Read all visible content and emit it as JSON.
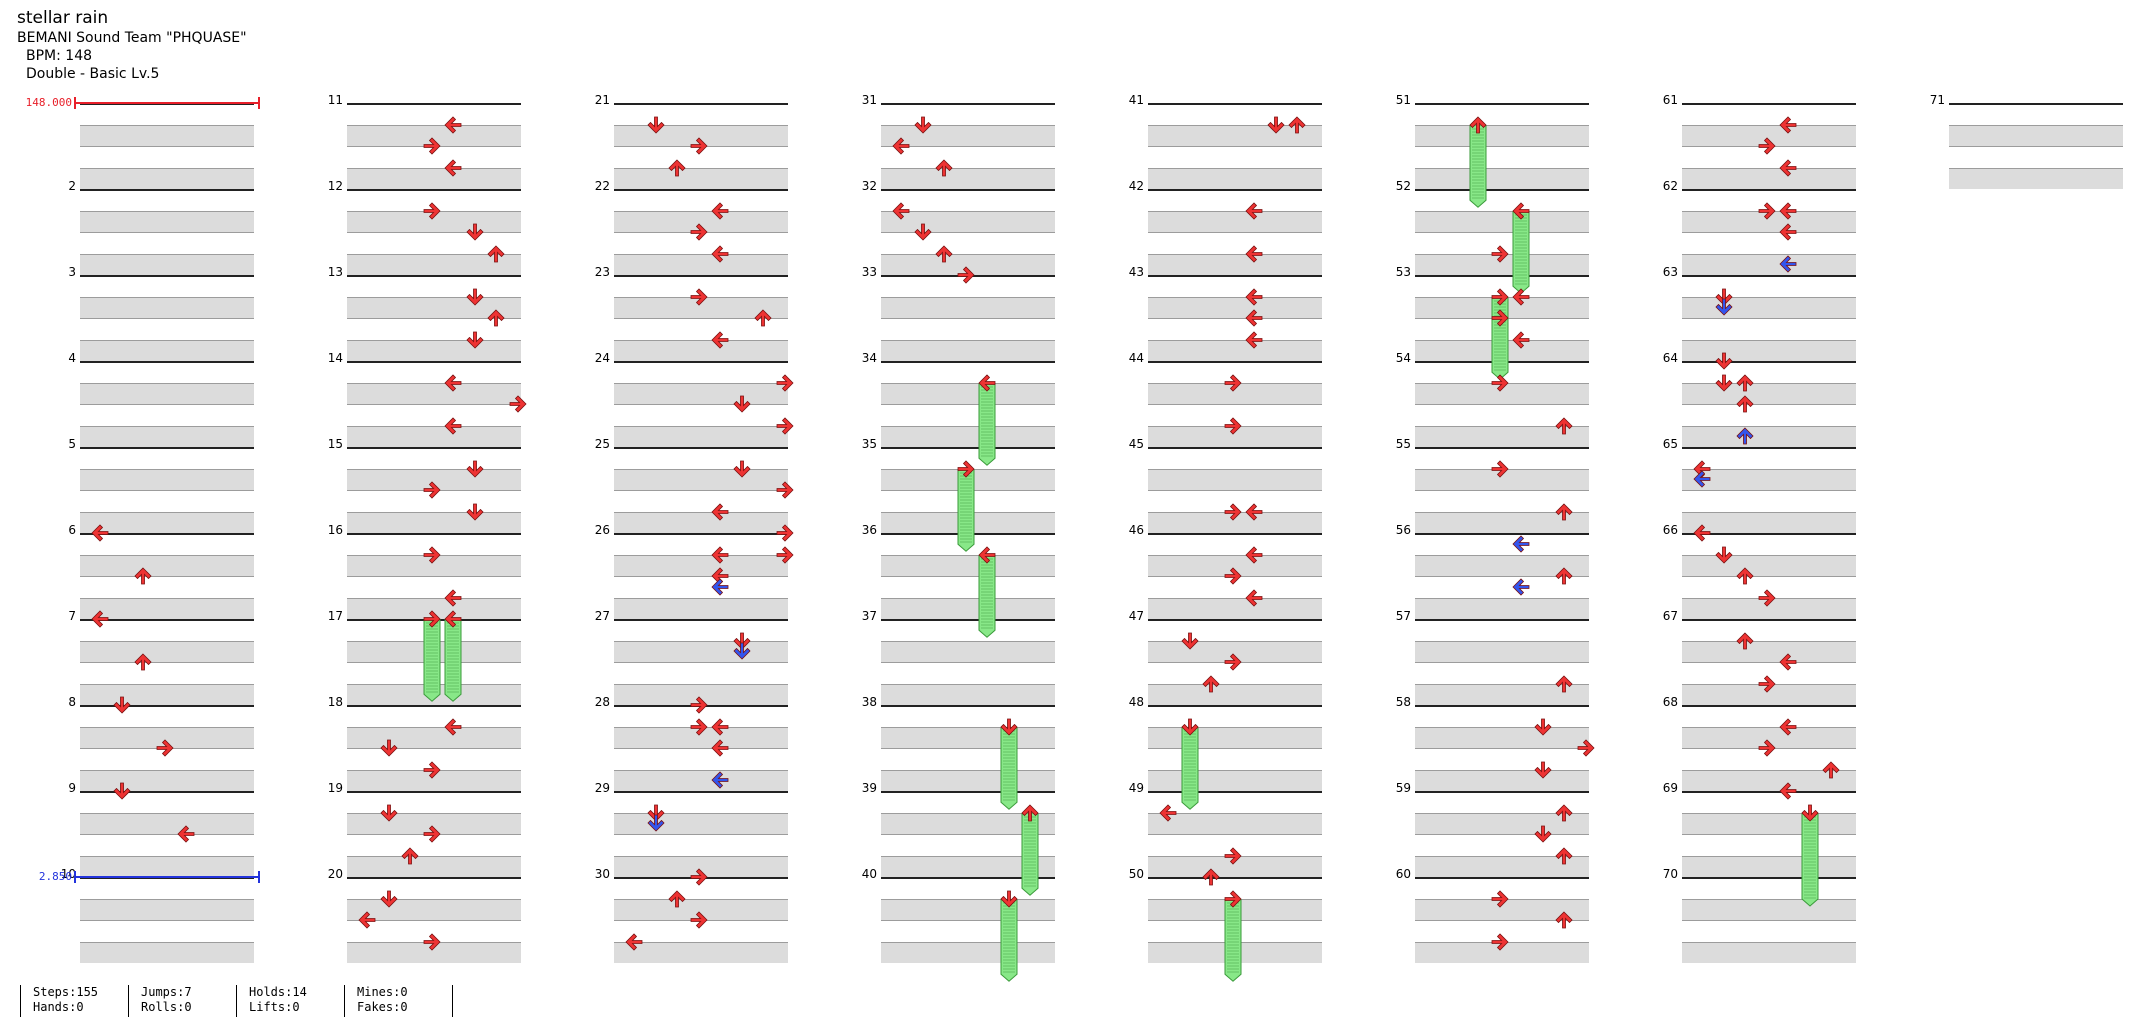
{
  "song": {
    "title": "stellar rain",
    "artist": "BEMANI Sound Team \"PHQUASE\"",
    "bpm": "BPM: 148",
    "difficulty": "Double - Basic Lv.5"
  },
  "measure_labels": [
    "",
    "2",
    "3",
    "4",
    "5",
    "6",
    "7",
    "8",
    "9",
    "10",
    "11",
    "12",
    "13",
    "14",
    "15",
    "16",
    "17",
    "18",
    "19",
    "20",
    "21",
    "22",
    "23",
    "24",
    "25",
    "26",
    "27",
    "28",
    "29",
    "30",
    "31",
    "32",
    "33",
    "34",
    "35",
    "36",
    "37",
    "38",
    "39",
    "40",
    "41",
    "42",
    "43",
    "44",
    "45",
    "46",
    "47",
    "48",
    "49",
    "50",
    "51",
    "52",
    "53",
    "54",
    "55",
    "56",
    "57",
    "58",
    "59",
    "60",
    "61",
    "62",
    "63",
    "64",
    "65",
    "66",
    "67",
    "68",
    "69",
    "70",
    "71"
  ],
  "bpm_changes": [
    {
      "label": "148.000",
      "measure": 1,
      "beat": 0,
      "color": "#e8202a"
    },
    {
      "label": "2.850",
      "measure": 10,
      "beat": 0,
      "color": "#2233dd"
    }
  ],
  "colors": {
    "quarter": "#ee3333",
    "eighth": "#3355ee",
    "hold": "#88e888",
    "hold_edge": "#3a9a3a"
  },
  "notes_note": "beat = position within measure in quarter notes (0-3.5); lane 0-7 = L D U R L D U R",
  "notes": [
    {
      "m": 6,
      "b": 0,
      "lane": 0
    },
    {
      "m": 6,
      "b": 2,
      "lane": 2
    },
    {
      "m": 7,
      "b": 0,
      "lane": 0
    },
    {
      "m": 7,
      "b": 2,
      "lane": 2
    },
    {
      "m": 8,
      "b": 0,
      "lane": 1
    },
    {
      "m": 8,
      "b": 2,
      "lane": 3
    },
    {
      "m": 9,
      "b": 0,
      "lane": 1
    },
    {
      "m": 9,
      "b": 2,
      "lane": 4
    },
    {
      "m": 11,
      "b": 1,
      "lane": 4
    },
    {
      "m": 11,
      "b": 2,
      "lane": 3
    },
    {
      "m": 11,
      "b": 3,
      "lane": 4
    },
    {
      "m": 12,
      "b": 1,
      "lane": 3
    },
    {
      "m": 12,
      "b": 2,
      "lane": 5
    },
    {
      "m": 12,
      "b": 3,
      "lane": 6
    },
    {
      "m": 13,
      "b": 1,
      "lane": 5
    },
    {
      "m": 13,
      "b": 2,
      "lane": 6
    },
    {
      "m": 13,
      "b": 3,
      "lane": 5
    },
    {
      "m": 14,
      "b": 1,
      "lane": 4
    },
    {
      "m": 14,
      "b": 2,
      "lane": 7
    },
    {
      "m": 14,
      "b": 3,
      "lane": 4
    },
    {
      "m": 15,
      "b": 1,
      "lane": 5
    },
    {
      "m": 15,
      "b": 2,
      "lane": 3
    },
    {
      "m": 15,
      "b": 3,
      "lane": 5
    },
    {
      "m": 16,
      "b": 1,
      "lane": 3
    },
    {
      "m": 16,
      "b": 3,
      "lane": 4
    },
    {
      "m": 18,
      "b": 1,
      "lane": 4
    },
    {
      "m": 18,
      "b": 2,
      "lane": 1
    },
    {
      "m": 18,
      "b": 3,
      "lane": 3
    },
    {
      "m": 19,
      "b": 1,
      "lane": 1
    },
    {
      "m": 19,
      "b": 2,
      "lane": 3
    },
    {
      "m": 19,
      "b": 3,
      "lane": 2
    },
    {
      "m": 20,
      "b": 1,
      "lane": 1
    },
    {
      "m": 20,
      "b": 2,
      "lane": 0
    },
    {
      "m": 20,
      "b": 3,
      "lane": 3
    },
    {
      "m": 21,
      "b": 1,
      "lane": 1
    },
    {
      "m": 21,
      "b": 2,
      "lane": 3
    },
    {
      "m": 21,
      "b": 3,
      "lane": 2
    },
    {
      "m": 22,
      "b": 1,
      "lane": 4
    },
    {
      "m": 22,
      "b": 2,
      "lane": 3
    },
    {
      "m": 22,
      "b": 3,
      "lane": 4
    },
    {
      "m": 23,
      "b": 1,
      "lane": 3
    },
    {
      "m": 23,
      "b": 2,
      "lane": 6
    },
    {
      "m": 23,
      "b": 3,
      "lane": 4
    },
    {
      "m": 24,
      "b": 1,
      "lane": 7
    },
    {
      "m": 24,
      "b": 2,
      "lane": 5
    },
    {
      "m": 24,
      "b": 3,
      "lane": 7
    },
    {
      "m": 25,
      "b": 1,
      "lane": 5
    },
    {
      "m": 25,
      "b": 2,
      "lane": 7
    },
    {
      "m": 25,
      "b": 3,
      "lane": 4
    },
    {
      "m": 25,
      "b": 4,
      "lane": 7
    },
    {
      "m": 26,
      "b": 1,
      "lane": 7
    },
    {
      "m": 26,
      "b": 1,
      "lane": 4
    },
    {
      "m": 26,
      "b": 2,
      "lane": 4
    },
    {
      "m": 26,
      "b": 3,
      "lane": 4,
      "blue": true,
      "pos": 2.5
    },
    {
      "m": 27,
      "b": 1,
      "lane": 5
    },
    {
      "m": 27,
      "b": 2,
      "lane": 5,
      "blue": true,
      "pos": 1.5
    },
    {
      "m": 28,
      "b": 0,
      "lane": 3
    },
    {
      "m": 28,
      "b": 1,
      "lane": 3
    },
    {
      "m": 28,
      "b": 1,
      "lane": 4
    },
    {
      "m": 28,
      "b": 2,
      "lane": 4
    },
    {
      "m": 28,
      "b": 3,
      "lane": 4,
      "blue": true,
      "pos": 3.5
    },
    {
      "m": 29,
      "b": 1,
      "lane": 1
    },
    {
      "m": 29,
      "b": 2,
      "lane": 1,
      "blue": true,
      "pos": 1.5
    },
    {
      "m": 30,
      "b": 0,
      "lane": 3
    },
    {
      "m": 30,
      "b": 1,
      "lane": 2
    },
    {
      "m": 30,
      "b": 2,
      "lane": 3
    },
    {
      "m": 30,
      "b": 3,
      "lane": 0
    },
    {
      "m": 31,
      "b": 1,
      "lane": 1
    },
    {
      "m": 31,
      "b": 2,
      "lane": 0
    },
    {
      "m": 31,
      "b": 3,
      "lane": 2
    },
    {
      "m": 32,
      "b": 1,
      "lane": 0
    },
    {
      "m": 32,
      "b": 2,
      "lane": 1
    },
    {
      "m": 32,
      "b": 3,
      "lane": 2
    },
    {
      "m": 33,
      "b": 0,
      "lane": 3
    },
    {
      "m": 41,
      "b": 1,
      "lane": 5
    },
    {
      "m": 41,
      "b": 1,
      "lane": 6
    },
    {
      "m": 42,
      "b": 1,
      "lane": 4
    },
    {
      "m": 42,
      "b": 3,
      "lane": 4
    },
    {
      "m": 43,
      "b": 1,
      "lane": 4
    },
    {
      "m": 43,
      "b": 2,
      "lane": 4
    },
    {
      "m": 43,
      "b": 3,
      "lane": 4
    },
    {
      "m": 44,
      "b": 1,
      "lane": 3
    },
    {
      "m": 44,
      "b": 3,
      "lane": 3
    },
    {
      "m": 45,
      "b": 3,
      "lane": 3
    },
    {
      "m": 45,
      "b": 3,
      "lane": 4
    },
    {
      "m": 46,
      "b": 1,
      "lane": 4
    },
    {
      "m": 46,
      "b": 2,
      "lane": 3
    },
    {
      "m": 46,
      "b": 3,
      "lane": 4
    },
    {
      "m": 47,
      "b": 1,
      "lane": 1
    },
    {
      "m": 47,
      "b": 2,
      "lane": 3
    },
    {
      "m": 47,
      "b": 3,
      "lane": 2
    },
    {
      "m": 49,
      "b": 1,
      "lane": 0
    },
    {
      "m": 49,
      "b": 3,
      "lane": 3
    },
    {
      "m": 50,
      "b": 0,
      "lane": 2
    },
    {
      "m": 52,
      "b": 3,
      "lane": 3
    },
    {
      "m": 53,
      "b": 1,
      "lane": 4
    },
    {
      "m": 53,
      "b": 2,
      "lane": 3
    },
    {
      "m": 53,
      "b": 3,
      "lane": 4
    },
    {
      "m": 54,
      "b": 1,
      "lane": 3
    },
    {
      "m": 54,
      "b": 3,
      "lane": 6
    },
    {
      "m": 55,
      "b": 1,
      "lane": 3
    },
    {
      "m": 55,
      "b": 3,
      "lane": 6
    },
    {
      "m": 56,
      "b": 1,
      "lane": 4,
      "blue": true,
      "pos": 0.5
    },
    {
      "m": 56,
      "b": 2,
      "lane": 6
    },
    {
      "m": 56,
      "b": 3,
      "lane": 4,
      "blue": true,
      "pos": 2.5
    },
    {
      "m": 57,
      "b": 3,
      "lane": 6
    },
    {
      "m": 58,
      "b": 1,
      "lane": 5
    },
    {
      "m": 58,
      "b": 2,
      "lane": 7
    },
    {
      "m": 58,
      "b": 3,
      "lane": 5
    },
    {
      "m": 59,
      "b": 1,
      "lane": 6
    },
    {
      "m": 59,
      "b": 2,
      "lane": 5
    },
    {
      "m": 59,
      "b": 3,
      "lane": 6
    },
    {
      "m": 60,
      "b": 1,
      "lane": 3
    },
    {
      "m": 60,
      "b": 2,
      "lane": 6
    },
    {
      "m": 60,
      "b": 3,
      "lane": 3
    },
    {
      "m": 61,
      "b": 1,
      "lane": 4
    },
    {
      "m": 61,
      "b": 2,
      "lane": 3
    },
    {
      "m": 61,
      "b": 3,
      "lane": 4
    },
    {
      "m": 62,
      "b": 1,
      "lane": 3
    },
    {
      "m": 62,
      "b": 1,
      "lane": 4
    },
    {
      "m": 62,
      "b": 2,
      "lane": 4
    },
    {
      "m": 62,
      "b": 3,
      "lane": 4,
      "blue": true,
      "pos": 3.5
    },
    {
      "m": 63,
      "b": 1,
      "lane": 1
    },
    {
      "m": 63,
      "b": 2,
      "lane": 1,
      "blue": true,
      "pos": 1.5
    },
    {
      "m": 64,
      "b": 0,
      "lane": 1
    },
    {
      "m": 64,
      "b": 1,
      "lane": 1
    },
    {
      "m": 64,
      "b": 1,
      "lane": 2
    },
    {
      "m": 64,
      "b": 2,
      "lane": 2
    },
    {
      "m": 64,
      "b": 3,
      "lane": 2,
      "blue": true,
      "pos": 3.5
    },
    {
      "m": 65,
      "b": 1,
      "lane": 0
    },
    {
      "m": 65,
      "b": 2,
      "lane": 0,
      "blue": true,
      "pos": 1.5
    },
    {
      "m": 66,
      "b": 0,
      "lane": 0
    },
    {
      "m": 66,
      "b": 1,
      "lane": 1
    },
    {
      "m": 66,
      "b": 2,
      "lane": 2
    },
    {
      "m": 66,
      "b": 3,
      "lane": 3
    },
    {
      "m": 67,
      "b": 1,
      "lane": 2
    },
    {
      "m": 67,
      "b": 2,
      "lane": 4
    },
    {
      "m": 67,
      "b": 3,
      "lane": 3
    },
    {
      "m": 68,
      "b": 1,
      "lane": 4
    },
    {
      "m": 68,
      "b": 2,
      "lane": 3
    },
    {
      "m": 68,
      "b": 3,
      "lane": 6
    },
    {
      "m": 69,
      "b": 0,
      "lane": 4
    }
  ],
  "holds": [
    {
      "m": 17,
      "b": 0,
      "len": 3.5,
      "lane": 3
    },
    {
      "m": 17,
      "b": 0,
      "len": 3.5,
      "lane": 4
    },
    {
      "m": 34,
      "b": 1,
      "len": 3.5,
      "lane": 4
    },
    {
      "m": 35,
      "b": 1,
      "len": 3.5,
      "lane": 3
    },
    {
      "m": 36,
      "b": 1,
      "len": 3.5,
      "lane": 4
    },
    {
      "m": 38,
      "b": 1,
      "len": 3.5,
      "lane": 5
    },
    {
      "m": 39,
      "b": 1,
      "len": 3.5,
      "lane": 6
    },
    {
      "m": 40,
      "b": 1,
      "len": 3.5,
      "lane": 5
    },
    {
      "m": 48,
      "b": 1,
      "len": 3.5,
      "lane": 1
    },
    {
      "m": 50,
      "b": 1,
      "len": 3.5,
      "lane": 3
    },
    {
      "m": 51,
      "b": 1,
      "len": 3.5,
      "lane": 2
    },
    {
      "m": 52,
      "b": 1,
      "len": 3.5,
      "lane": 4
    },
    {
      "m": 53,
      "b": 1,
      "len": 3.5,
      "lane": 3
    },
    {
      "m": 69,
      "b": 1,
      "len": 4,
      "lane": 5
    }
  ],
  "stats": [
    {
      "top": "Steps:155",
      "bottom": "Hands:0"
    },
    {
      "top": "Jumps:7",
      "bottom": "Rolls:0"
    },
    {
      "top": "Holds:14",
      "bottom": "Lifts:0"
    },
    {
      "top": "Mines:0",
      "bottom": "Fakes:0"
    }
  ]
}
